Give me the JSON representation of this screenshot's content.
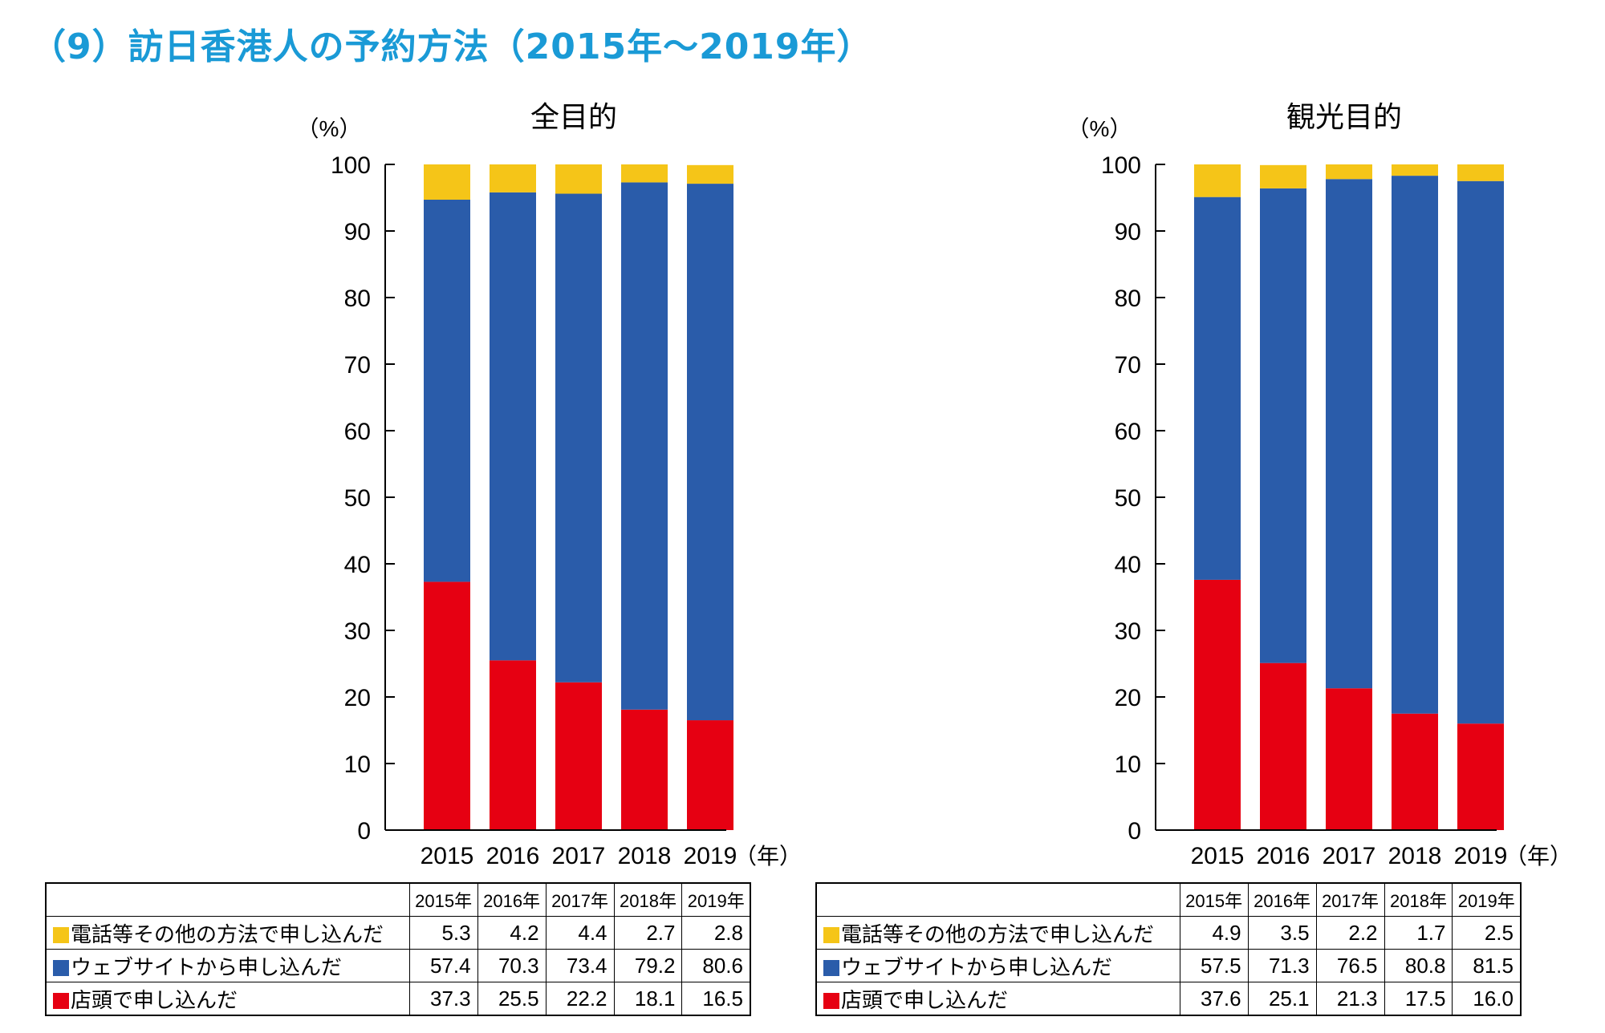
{
  "page": {
    "title": "（9）訪日香港人の予約方法（2015年～2019年）"
  },
  "colors": {
    "title": "#1a9ad6",
    "other": "#f5c518",
    "web": "#2a5caa",
    "store": "#e60012"
  },
  "chart_data": [
    {
      "type": "bar",
      "stacked": true,
      "title": "全目的",
      "ylabel": "（%）",
      "xlabel": "（年）",
      "ylim": [
        0,
        100
      ],
      "yticks": [
        0,
        10,
        20,
        30,
        40,
        50,
        60,
        70,
        80,
        90,
        100
      ],
      "categories": [
        "2015",
        "2016",
        "2017",
        "2018",
        "2019"
      ],
      "series": [
        {
          "name": "店頭で申し込んだ",
          "key": "store",
          "values": [
            37.3,
            25.5,
            22.2,
            18.1,
            16.5
          ]
        },
        {
          "name": "ウェブサイトから申し込んだ",
          "key": "web",
          "values": [
            57.4,
            70.3,
            73.4,
            79.2,
            80.6
          ]
        },
        {
          "name": "電話等その他の方法で申し込んだ",
          "key": "other",
          "values": [
            5.3,
            4.2,
            4.4,
            2.7,
            2.8
          ]
        }
      ]
    },
    {
      "type": "bar",
      "stacked": true,
      "title": "観光目的",
      "ylabel": "（%）",
      "xlabel": "（年）",
      "ylim": [
        0,
        100
      ],
      "yticks": [
        0,
        10,
        20,
        30,
        40,
        50,
        60,
        70,
        80,
        90,
        100
      ],
      "categories": [
        "2015",
        "2016",
        "2017",
        "2018",
        "2019"
      ],
      "series": [
        {
          "name": "店頭で申し込んだ",
          "key": "store",
          "values": [
            37.6,
            25.1,
            21.3,
            17.5,
            16.0
          ]
        },
        {
          "name": "ウェブサイトから申し込んだ",
          "key": "web",
          "values": [
            57.5,
            71.3,
            76.5,
            80.8,
            81.5
          ]
        },
        {
          "name": "電話等その他の方法で申し込んだ",
          "key": "other",
          "values": [
            4.9,
            3.5,
            2.2,
            1.7,
            2.5
          ]
        }
      ]
    }
  ],
  "tables": [
    {
      "headers": [
        "2015年",
        "2016年",
        "2017年",
        "2018年",
        "2019年"
      ],
      "rows": [
        {
          "key": "other",
          "label": "電話等その他の方法で申し込んだ",
          "values": [
            "5.3",
            "4.2",
            "4.4",
            "2.7",
            "2.8"
          ]
        },
        {
          "key": "web",
          "label": "ウェブサイトから申し込んだ",
          "values": [
            "57.4",
            "70.3",
            "73.4",
            "79.2",
            "80.6"
          ]
        },
        {
          "key": "store",
          "label": "店頭で申し込んだ",
          "values": [
            "37.3",
            "25.5",
            "22.2",
            "18.1",
            "16.5"
          ]
        }
      ]
    },
    {
      "headers": [
        "2015年",
        "2016年",
        "2017年",
        "2018年",
        "2019年"
      ],
      "rows": [
        {
          "key": "other",
          "label": "電話等その他の方法で申し込んだ",
          "values": [
            "4.9",
            "3.5",
            "2.2",
            "1.7",
            "2.5"
          ]
        },
        {
          "key": "web",
          "label": "ウェブサイトから申し込んだ",
          "values": [
            "57.5",
            "71.3",
            "76.5",
            "80.8",
            "81.5"
          ]
        },
        {
          "key": "store",
          "label": "店頭で申し込んだ",
          "values": [
            "37.6",
            "25.1",
            "21.3",
            "17.5",
            "16.0"
          ]
        }
      ]
    }
  ]
}
